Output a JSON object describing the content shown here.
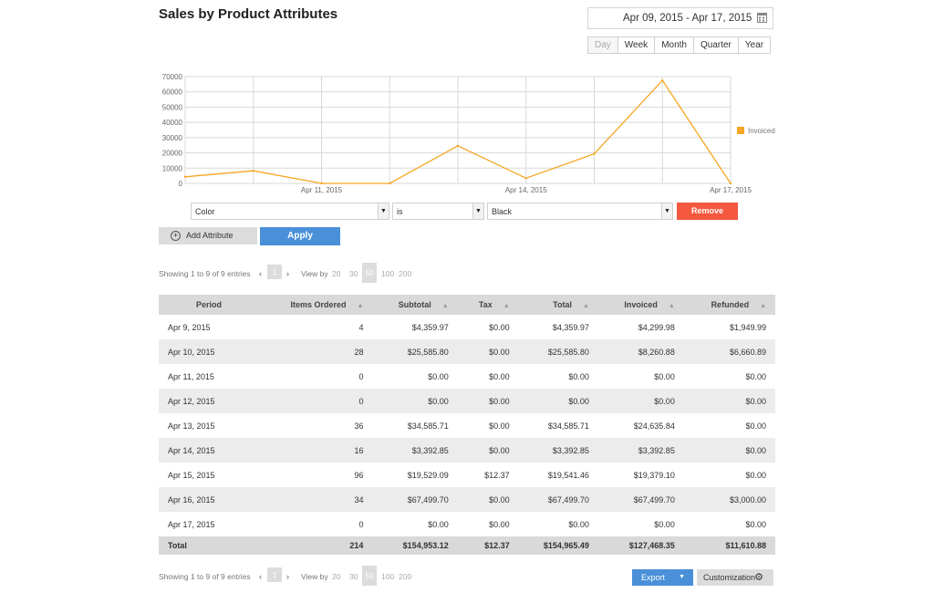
{
  "page": {
    "title": "Sales by Product Attributes"
  },
  "date_range": {
    "label": "Apr 09, 2015 - Apr 17, 2015",
    "icon": "calendar-icon"
  },
  "period_tabs": [
    "Day",
    "Week",
    "Month",
    "Quarter",
    "Year"
  ],
  "chart_data": {
    "type": "line",
    "x": [
      "Apr 9, 2015",
      "Apr 10, 2015",
      "Apr 11, 2015",
      "Apr 12, 2015",
      "Apr 13, 2015",
      "Apr 14, 2015",
      "Apr 15, 2015",
      "Apr 16, 2015",
      "Apr 17, 2015"
    ],
    "x_tick_labels": [
      "Apr 11, 2015",
      "Apr 14, 2015",
      "Apr 17, 2015"
    ],
    "series": [
      {
        "name": "Invoiced",
        "color": "#f5a623",
        "values": [
          4299.98,
          8260.88,
          0,
          0,
          24635.84,
          3392.85,
          19379.1,
          67499.7,
          0
        ]
      }
    ],
    "y_ticks": [
      "0",
      "10000",
      "20000",
      "30000",
      "40000",
      "50000",
      "60000",
      "70000"
    ],
    "ylim": [
      0,
      70000
    ],
    "grid": true,
    "legend_position": "right"
  },
  "filters": {
    "attribute": "Color",
    "operator": "is",
    "value": "Black",
    "remove_label": "Remove",
    "add_label": "Add Attribute",
    "apply_label": "Apply"
  },
  "pager": {
    "showing": "Showing 1 to 9 of 9 entries",
    "page": "1",
    "view_by": "View by",
    "options": [
      "20",
      "30",
      "50",
      "100",
      "200"
    ],
    "active_option": "50"
  },
  "table": {
    "columns": [
      "Period",
      "Items Ordered",
      "Subtotal",
      "Tax",
      "Total",
      "Invoiced",
      "Refunded"
    ],
    "rows": [
      [
        "Apr 9, 2015",
        "4",
        "$4,359.97",
        "$0.00",
        "$4,359.97",
        "$4,299.98",
        "$1,949.99"
      ],
      [
        "Apr 10, 2015",
        "28",
        "$25,585.80",
        "$0.00",
        "$25,585.80",
        "$8,260.88",
        "$6,660.89"
      ],
      [
        "Apr 11, 2015",
        "0",
        "$0.00",
        "$0.00",
        "$0.00",
        "$0.00",
        "$0.00"
      ],
      [
        "Apr 12, 2015",
        "0",
        "$0.00",
        "$0.00",
        "$0.00",
        "$0.00",
        "$0.00"
      ],
      [
        "Apr 13, 2015",
        "36",
        "$34,585.71",
        "$0.00",
        "$34,585.71",
        "$24,635.84",
        "$0.00"
      ],
      [
        "Apr 14, 2015",
        "16",
        "$3,392.85",
        "$0.00",
        "$3,392.85",
        "$3,392.85",
        "$0.00"
      ],
      [
        "Apr 15, 2015",
        "96",
        "$19,529.09",
        "$12.37",
        "$19,541.46",
        "$19,379.10",
        "$0.00"
      ],
      [
        "Apr 16, 2015",
        "34",
        "$67,499.70",
        "$0.00",
        "$67,499.70",
        "$67,499.70",
        "$3,000.00"
      ],
      [
        "Apr 17, 2015",
        "0",
        "$0.00",
        "$0.00",
        "$0.00",
        "$0.00",
        "$0.00"
      ]
    ],
    "total": [
      "Total",
      "214",
      "$154,953.12",
      "$12.37",
      "$154,965.49",
      "$127,468.35",
      "$11,610.88"
    ]
  },
  "footer": {
    "export_label": "Export",
    "customization_label": "Customization",
    "gear_icon": "gear-icon"
  }
}
